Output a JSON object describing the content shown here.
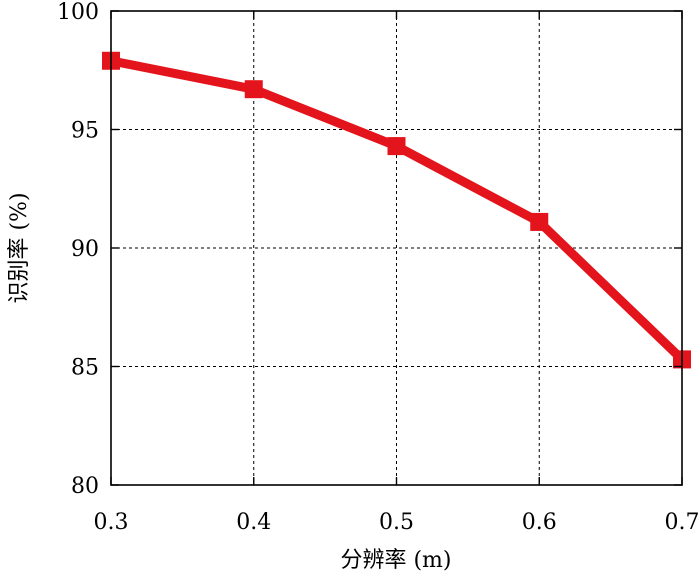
{
  "chart_data": {
    "type": "line",
    "xlabel": "分辨率 (m)",
    "ylabel": "识别率 (%)",
    "xlim": [
      0.3,
      0.7
    ],
    "ylim": [
      80,
      100
    ],
    "xticks": [
      "0.3",
      "0.4",
      "0.5",
      "0.6",
      "0.7"
    ],
    "yticks": [
      "80",
      "85",
      "90",
      "95",
      "100"
    ],
    "grid": true,
    "series": [
      {
        "x": [
          0.3,
          0.4,
          0.5,
          0.6,
          0.7
        ],
        "y": [
          97.9,
          96.7,
          94.3,
          91.1,
          85.3
        ],
        "color": "#e3141b",
        "marker": "square"
      }
    ]
  }
}
